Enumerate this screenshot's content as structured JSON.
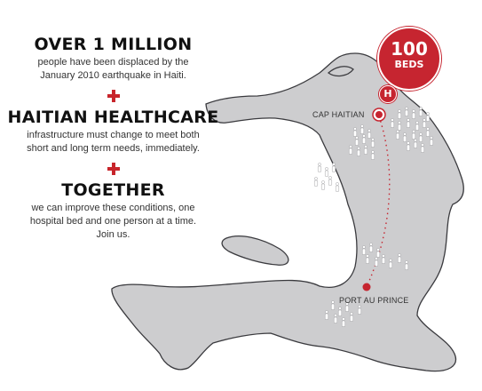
{
  "sections": [
    {
      "headline": "OVER 1 MILLION",
      "body": [
        "people have been displaced by the",
        "January 2010 earthquake in Haiti."
      ]
    },
    {
      "headline": "HAITIAN HEALTHCARE",
      "body": [
        "infrastructure must change to meet both",
        "short and long term needs, immediately."
      ]
    },
    {
      "headline": "TOGETHER",
      "body": [
        "we can improve these conditions, one",
        "hospital bed and one person at a time.",
        "Join us."
      ]
    }
  ],
  "map": {
    "label_north": "CAP HAITIAN",
    "label_south": "PORT AU PRINCE",
    "badge_number": "100",
    "badge_unit": "BEDS",
    "hospital_letter": "H",
    "icon": "person-icon",
    "colors": {
      "land": "#cdcdcf",
      "outline": "#3a3a3e",
      "accent": "#c62530"
    }
  }
}
